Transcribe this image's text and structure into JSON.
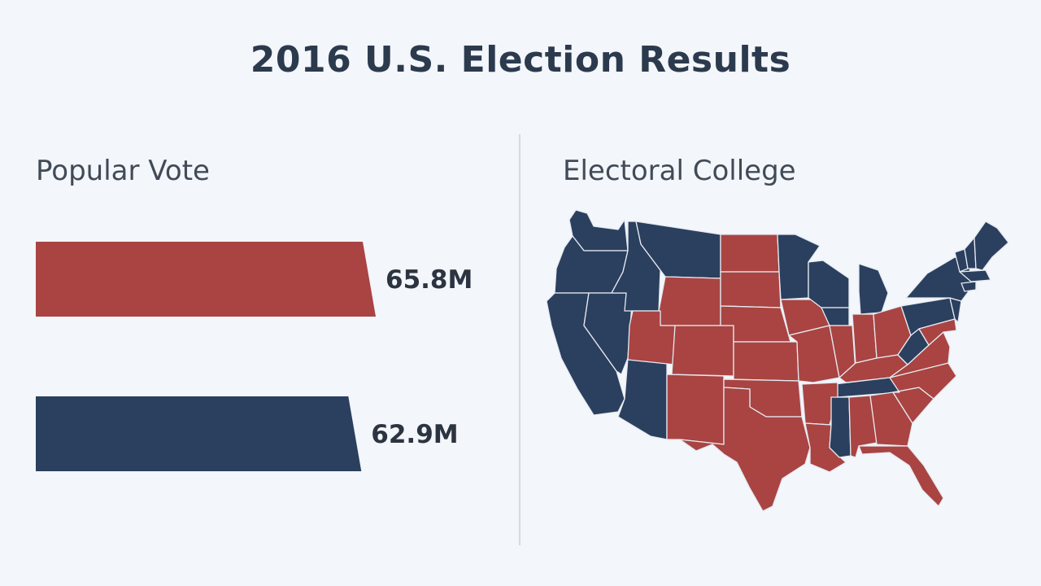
{
  "title": "2016 U.S. Election Results",
  "popular_vote": {
    "label": "Popular Vote"
  },
  "electoral_college": {
    "label": "Electoral College"
  },
  "colors": {
    "red": "#a94442",
    "blue": "#2b3f5e",
    "background": "#f3f6fa",
    "title": "#2c3a4e"
  },
  "chart_data": {
    "type": "bar",
    "orientation": "horizontal",
    "title": "Popular Vote",
    "series": [
      {
        "value": 65.8,
        "value_label": "65.8M",
        "color": "#a94442"
      },
      {
        "value": 62.9,
        "value_label": "62.9M",
        "color": "#2b3f5e"
      }
    ],
    "xlim": [
      0,
      65.8
    ],
    "grid": false
  },
  "map": {
    "title": "Electoral College",
    "states_red": [
      "MT-part",
      "ND",
      "SD",
      "WY",
      "NE",
      "KS",
      "OK",
      "TX",
      "UT",
      "CO",
      "NM",
      "AZ-part",
      "MO",
      "IA",
      "IN",
      "OH",
      "KY",
      "AR",
      "LA",
      "AL",
      "GA",
      "SC",
      "NC",
      "VA-south",
      "FL",
      "ID-part"
    ],
    "states_blue": [
      "WA",
      "OR",
      "CA",
      "NV",
      "AZ",
      "ID",
      "MT",
      "MN",
      "WI",
      "MI",
      "IL-west",
      "PA",
      "NY",
      "VT",
      "NH",
      "ME",
      "MA",
      "CT",
      "NJ",
      "WV",
      "TN",
      "MS"
    ]
  }
}
